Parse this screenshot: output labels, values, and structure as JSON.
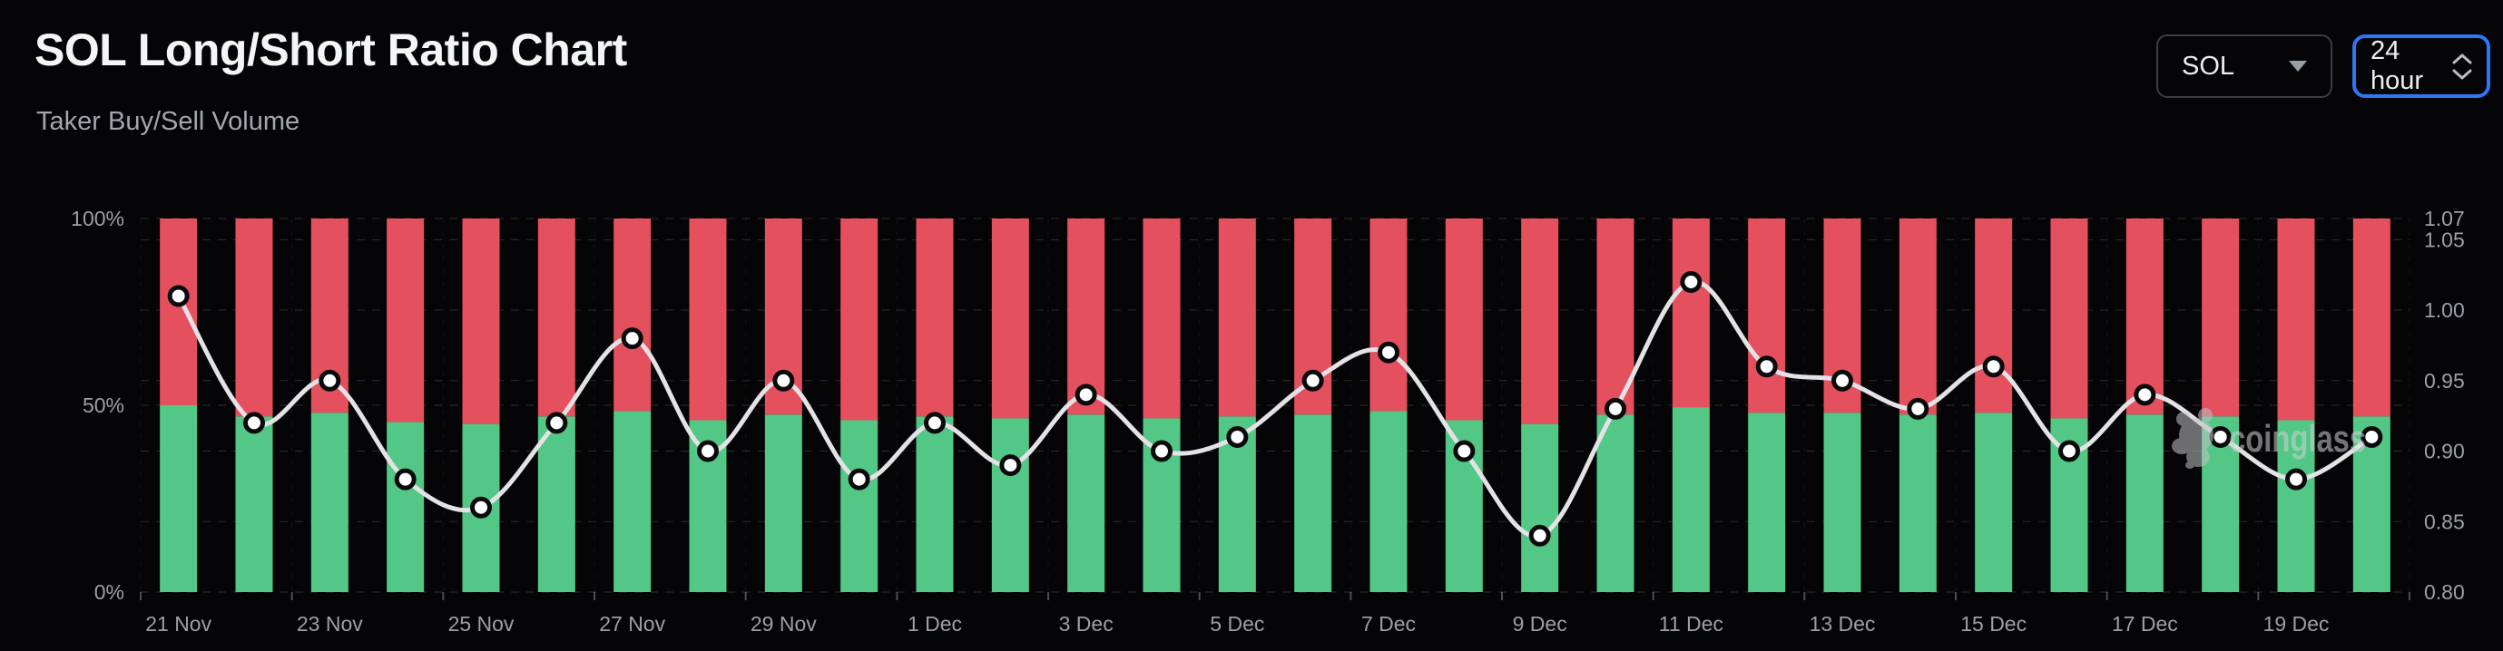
{
  "header": {
    "title": "SOL Long/Short Ratio Chart",
    "subtitle": "Taker Buy/Sell Volume"
  },
  "controls": {
    "symbol_select": {
      "value": "SOL",
      "icon": "caret-down"
    },
    "interval_select": {
      "value": "24 hour",
      "icon": "chevron-up-down",
      "accent_color": "#2e78f4"
    }
  },
  "watermark": {
    "text": "coinglass"
  },
  "colors": {
    "background": "#050507",
    "long_green": "#53c786",
    "short_red": "#e5505f",
    "line": "#e4e2e6",
    "marker_fill": "#ffffff",
    "marker_stroke": "#0a0a0d",
    "axis_text": "#9ba0a6",
    "grid_h": "rgba(255,255,255,0.16)",
    "grid_v": "rgba(255,255,255,0.06)",
    "tick": "#4a4e55"
  },
  "chart_data": {
    "type": "stacked-bar+line",
    "title": "SOL Long/Short Ratio Chart",
    "subtitle": "Taker Buy/Sell Volume",
    "categories": [
      "21 Nov",
      "22 Nov",
      "23 Nov",
      "24 Nov",
      "25 Nov",
      "26 Nov",
      "27 Nov",
      "28 Nov",
      "29 Nov",
      "30 Nov",
      "1 Dec",
      "2 Dec",
      "3 Dec",
      "4 Dec",
      "5 Dec",
      "6 Dec",
      "7 Dec",
      "8 Dec",
      "9 Dec",
      "10 Dec",
      "11 Dec",
      "12 Dec",
      "13 Dec",
      "14 Dec",
      "15 Dec",
      "16 Dec",
      "17 Dec",
      "18 Dec",
      "19 Dec",
      "20 Dec"
    ],
    "x_tick_labels": [
      "21 Nov",
      "23 Nov",
      "25 Nov",
      "27 Nov",
      "29 Nov",
      "1 Dec",
      "3 Dec",
      "5 Dec",
      "7 Dec",
      "9 Dec",
      "11 Dec",
      "13 Dec",
      "15 Dec",
      "17 Dec",
      "19 Dec"
    ],
    "series": [
      {
        "name": "long_pct",
        "type": "bar",
        "stack": true,
        "axis": "left",
        "values": [
          50,
          47,
          48,
          45.5,
          45,
          47,
          48.5,
          46,
          47.5,
          46,
          47,
          46.5,
          47.5,
          46.5,
          47,
          47.5,
          48.5,
          46,
          45,
          47.5,
          49.5,
          48,
          48,
          47.5,
          48,
          46.5,
          47.5,
          47,
          46,
          47
        ]
      },
      {
        "name": "short_pct",
        "type": "bar",
        "stack": true,
        "axis": "left",
        "values": [
          50,
          53,
          52,
          54.5,
          55,
          53,
          51.5,
          54,
          52.5,
          54,
          53,
          53.5,
          52.5,
          53.5,
          53,
          52.5,
          51.5,
          54,
          55,
          52.5,
          50.5,
          52,
          52,
          52.5,
          52,
          53.5,
          52.5,
          53,
          54,
          53
        ]
      },
      {
        "name": "long_short_ratio",
        "type": "line",
        "smooth": true,
        "axis": "right",
        "values": [
          1.01,
          0.92,
          0.95,
          0.88,
          0.86,
          0.92,
          0.98,
          0.9,
          0.95,
          0.88,
          0.92,
          0.89,
          0.94,
          0.9,
          0.91,
          0.95,
          0.97,
          0.9,
          0.84,
          0.93,
          1.02,
          0.96,
          0.95,
          0.93,
          0.96,
          0.9,
          0.94,
          0.91,
          0.88,
          0.91
        ]
      }
    ],
    "left_axis": {
      "tick_labels": [
        "100%",
        "50%",
        "0%"
      ],
      "tick_values": [
        100,
        50,
        0
      ],
      "min": 0,
      "max": 100
    },
    "right_axis": {
      "tick_labels": [
        "1.07",
        "1.05",
        "1.00",
        "0.95",
        "0.90",
        "0.85",
        "0.80"
      ],
      "tick_values": [
        1.065,
        1.05,
        1.0,
        0.95,
        0.9,
        0.85,
        0.8
      ],
      "min": 0.8,
      "max": 1.065
    },
    "grid": true,
    "legend": "none"
  }
}
